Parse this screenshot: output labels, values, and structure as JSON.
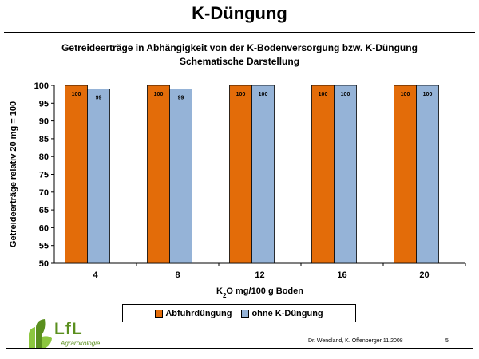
{
  "slide": {
    "title": "K-Düngung",
    "footer_authors": "Dr. Wendland, K. Offenberger 11.2008",
    "page_number": "5"
  },
  "logo": {
    "name": "LfL",
    "subtitle": "Agrarökologie",
    "colors": {
      "green": "#5a8f1e",
      "light_green": "#8cc63f"
    }
  },
  "colors": {
    "abfuhr": "#e36c09",
    "ohne": "#95b3d7",
    "outline": "#000000"
  },
  "chart_data": {
    "type": "bar",
    "title": "Getreideerträge in Abhängigkeit von der K-Bodenversorgung  bzw. K-Düngung",
    "subtitle": "Schematische Darstellung",
    "xlabel": "K2O mg/100 g Boden",
    "ylabel": "Getreideerträge relativ 20 mg = 100",
    "categories": [
      "4",
      "8",
      "12",
      "16",
      "20"
    ],
    "ylim": [
      50,
      100
    ],
    "yticks": [
      50,
      55,
      60,
      65,
      70,
      75,
      80,
      85,
      90,
      95,
      100
    ],
    "series": [
      {
        "name": "Abfuhrdüngung",
        "values": [
          100,
          100,
          100,
          100,
          100
        ]
      },
      {
        "name": "ohne K-Düngung",
        "values": [
          99,
          99,
          100,
          100,
          100
        ]
      }
    ],
    "legend_position": "bottom",
    "grid": false
  }
}
